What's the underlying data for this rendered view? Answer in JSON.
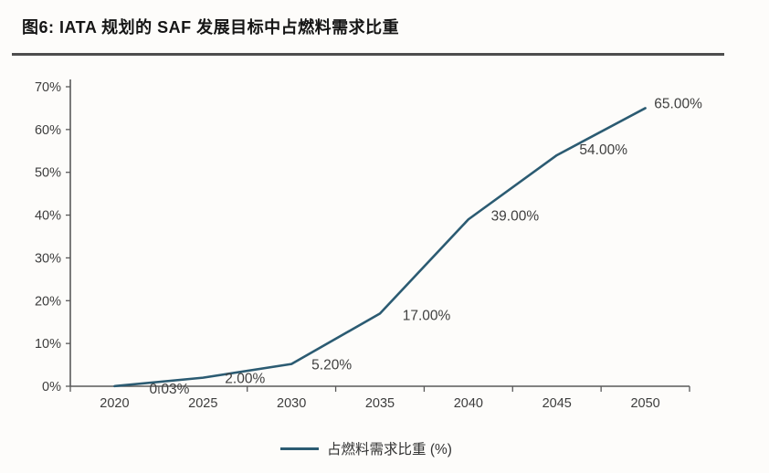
{
  "figure": {
    "title": "图6: IATA 规划的 SAF 发展目标中占燃料需求比重"
  },
  "chart_data": {
    "type": "line",
    "title": "图6: IATA 规划的 SAF 发展目标中占燃料需求比重",
    "categories": [
      "2020",
      "2025",
      "2030",
      "2035",
      "2040",
      "2045",
      "2050"
    ],
    "series": [
      {
        "name": "占燃料需求比重 (%)",
        "values": [
          0.03,
          2.0,
          5.2,
          17.0,
          39.0,
          54.0,
          65.0
        ],
        "color": "#2b5b72"
      }
    ],
    "data_labels": [
      "0.03%",
      "2.00%",
      "5.20%",
      "17.00%",
      "39.00%",
      "54.00%",
      "65.00%"
    ],
    "xlabel": "",
    "ylabel": "",
    "ylim": [
      0,
      70
    ],
    "y_ticks": [
      "0%",
      "10%",
      "20%",
      "30%",
      "40%",
      "50%",
      "60%",
      "70%"
    ],
    "grid": false,
    "legend_position": "bottom",
    "axis_color": "#595959",
    "label_color": "#3f3f3f"
  },
  "legend": {
    "label": "占燃料需求比重 (%)"
  }
}
